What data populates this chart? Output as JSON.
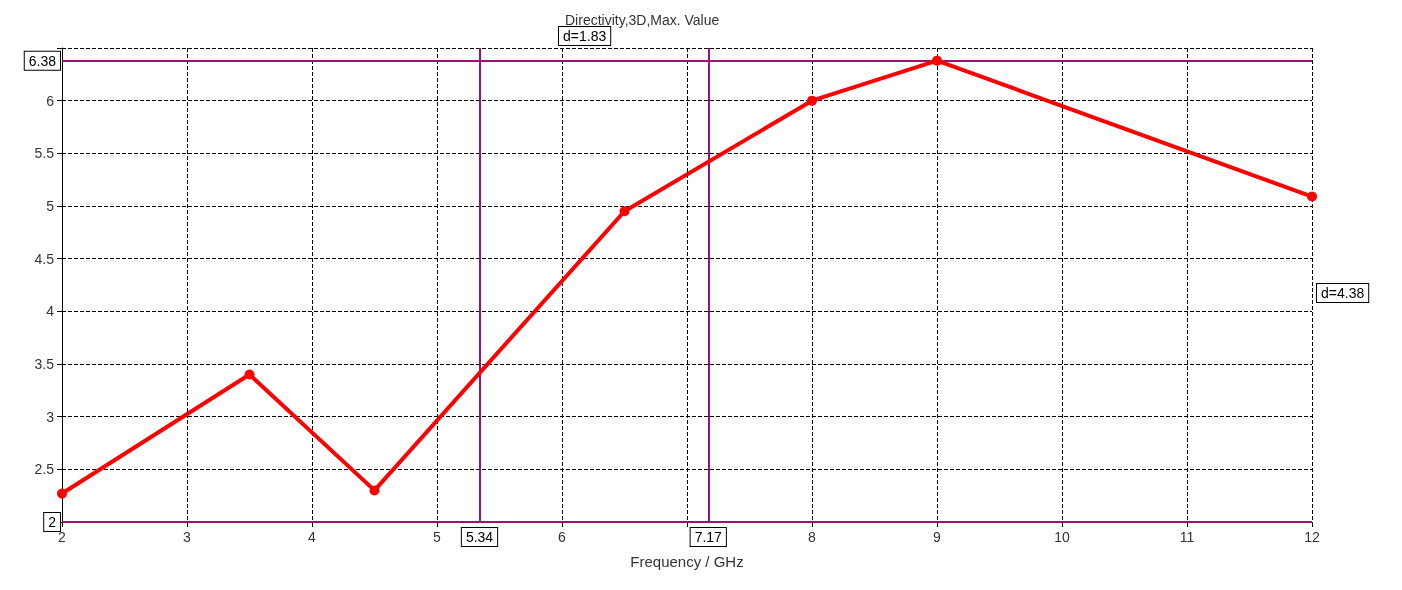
{
  "chart_data": {
    "type": "line",
    "title": "Directivity,3D,Max. Value",
    "xlabel": "Frequency / GHz",
    "x": [
      2,
      3.5,
      4.5,
      6.5,
      8,
      9,
      12
    ],
    "series": [
      {
        "color": "#ff0000",
        "values": [
          2.27,
          3.4,
          2.3,
          4.95,
          6.0,
          6.38,
          5.09
        ]
      }
    ],
    "xlim": [
      2,
      12
    ],
    "xticks": [
      2,
      3,
      4,
      5,
      6,
      {
        "value": 7,
        "label": null
      },
      8,
      9,
      10,
      11,
      12
    ],
    "ylim": [
      2,
      6.5
    ],
    "yticks": [
      {
        "value": 2,
        "label": null
      },
      2.5,
      3,
      3.5,
      4,
      4.5,
      5,
      5.5,
      6,
      {
        "value": 6.5,
        "label": null
      }
    ],
    "ref_lines": [
      {
        "axis": "x",
        "value": 5.34,
        "label": "5.34",
        "color": "#a0106e"
      },
      {
        "axis": "x",
        "value": 7.17,
        "label": "7.17",
        "color": "#a0106e"
      },
      {
        "axis": "y",
        "value": 6.38,
        "label": "6.38",
        "color": "#a0106e"
      },
      {
        "axis": "y",
        "value": 2,
        "label": "2",
        "color": "#a0106e"
      }
    ],
    "annotations": [
      "d=1.83",
      "d=4.38"
    ],
    "grid": true,
    "marker": "circle",
    "line_style": "solid"
  }
}
